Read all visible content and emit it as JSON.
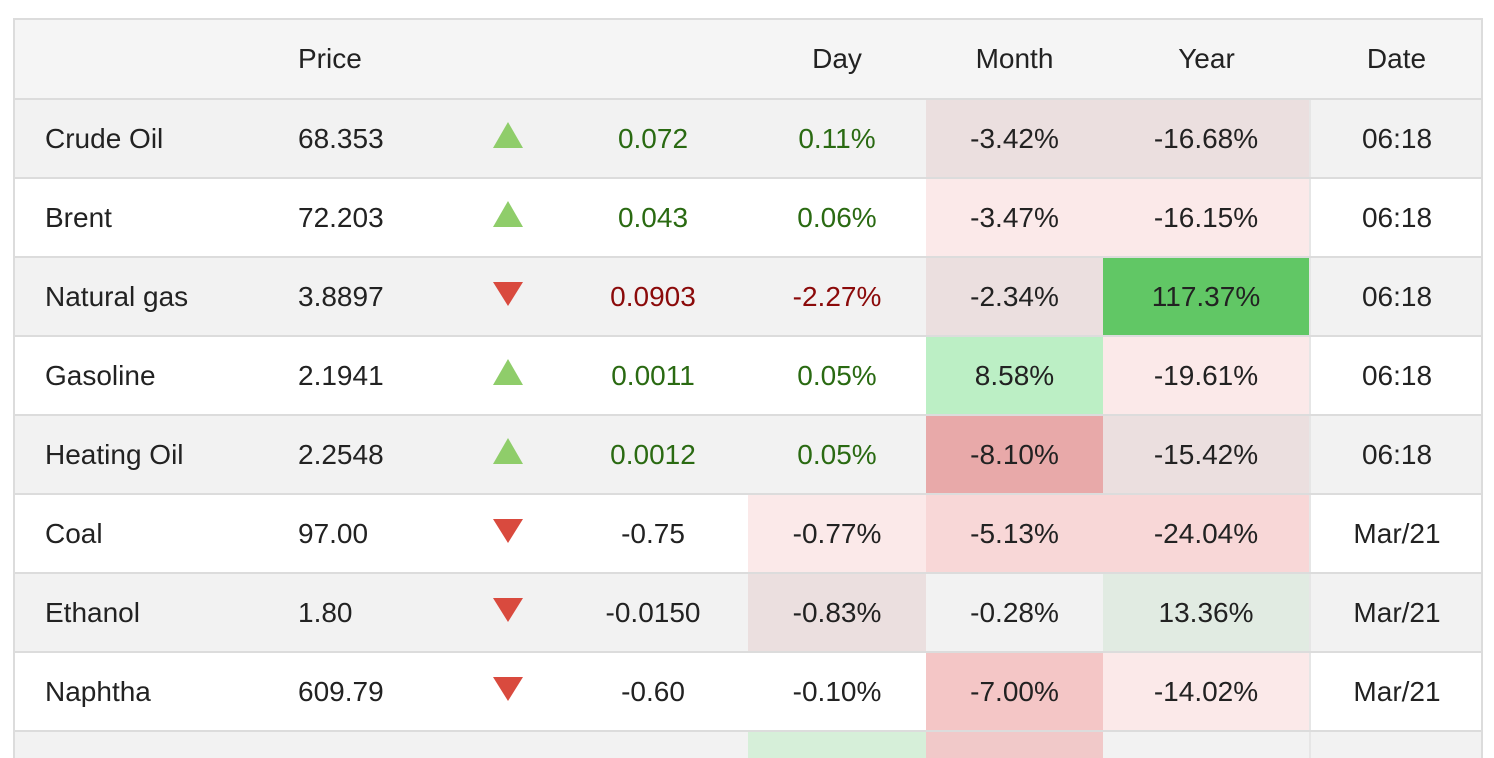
{
  "header": {
    "price": "Price",
    "day": "Day",
    "month": "Month",
    "year": "Year",
    "date": "Date"
  },
  "rows": [
    {
      "name": "Crude Oil",
      "price": "68.353",
      "direction": "up",
      "change": "0.072",
      "day": "0.11%",
      "month": "-3.42%",
      "year": "-16.68%",
      "date": "06:18",
      "change_color": "pos",
      "day_color": "pos",
      "day_bg": "",
      "month_bg": "#ebdfdf",
      "year_bg": "#ebdfdf"
    },
    {
      "name": "Brent",
      "price": "72.203",
      "direction": "up",
      "change": "0.043",
      "day": "0.06%",
      "month": "-3.47%",
      "year": "-16.15%",
      "date": "06:18",
      "change_color": "pos",
      "day_color": "pos",
      "day_bg": "",
      "month_bg": "#fbe9e9",
      "year_bg": "#fbe9e9"
    },
    {
      "name": "Natural gas",
      "price": "3.8897",
      "direction": "down",
      "change": "0.0903",
      "day": "-2.27%",
      "month": "-2.34%",
      "year": "117.37%",
      "date": "06:18",
      "change_color": "neg",
      "day_color": "neg",
      "day_bg": "",
      "month_bg": "#ebdfdf",
      "year_bg": "#61c765"
    },
    {
      "name": "Gasoline",
      "price": "2.1941",
      "direction": "up",
      "change": "0.0011",
      "day": "0.05%",
      "month": "8.58%",
      "year": "-19.61%",
      "date": "06:18",
      "change_color": "pos",
      "day_color": "pos",
      "day_bg": "",
      "month_bg": "#bcefc5",
      "year_bg": "#fbe9e9"
    },
    {
      "name": "Heating Oil",
      "price": "2.2548",
      "direction": "up",
      "change": "0.0012",
      "day": "0.05%",
      "month": "-8.10%",
      "year": "-15.42%",
      "date": "06:18",
      "change_color": "pos",
      "day_color": "pos",
      "day_bg": "",
      "month_bg": "#e8a9a9",
      "year_bg": "#ebdfdf"
    },
    {
      "name": "Coal",
      "price": "97.00",
      "direction": "down",
      "change": "-0.75",
      "day": "-0.77%",
      "month": "-5.13%",
      "year": "-24.04%",
      "date": "Mar/21",
      "change_color": "",
      "day_color": "",
      "day_bg": "#fbe9e9",
      "month_bg": "#f8d7d7",
      "year_bg": "#f8d7d7"
    },
    {
      "name": "Ethanol",
      "price": "1.80",
      "direction": "down",
      "change": "-0.0150",
      "day": "-0.83%",
      "month": "-0.28%",
      "year": "13.36%",
      "date": "Mar/21",
      "change_color": "",
      "day_color": "",
      "day_bg": "#ebdfdf",
      "month_bg": "",
      "year_bg": "#e1ebe2"
    },
    {
      "name": "Naphtha",
      "price": "609.79",
      "direction": "down",
      "change": "-0.60",
      "day": "-0.10%",
      "month": "-7.00%",
      "year": "-14.02%",
      "date": "Mar/21",
      "change_color": "",
      "day_color": "",
      "day_bg": "",
      "month_bg": "#f4c6c6",
      "year_bg": "#fbe9e9"
    }
  ],
  "partial_row": {
    "day_bg": "#d6efd9",
    "month_bg": "#f1c9c9"
  },
  "icons": {
    "up": "triangle-up-icon",
    "down": "triangle-down-icon"
  },
  "colors": {
    "positive_text": "#2a6a12",
    "negative_text": "#8b0a0a",
    "arrow_up": "#8fcd6a",
    "arrow_down": "#d94a3e"
  }
}
